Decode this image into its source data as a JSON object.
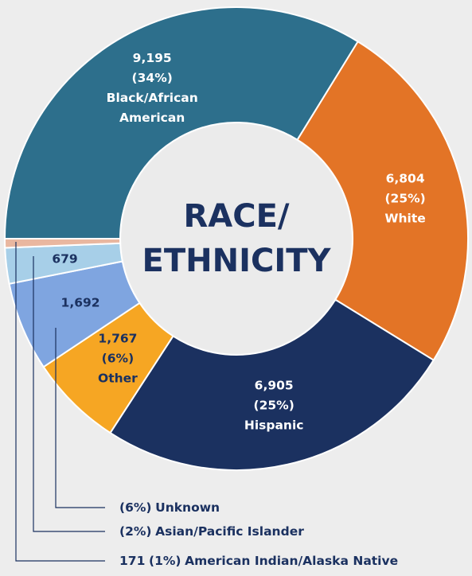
{
  "chart_data": {
    "type": "donut",
    "title_lines": [
      "RACE/",
      "ETHNICITY"
    ],
    "categories": [
      "Black/African American",
      "White",
      "Hispanic",
      "Other",
      "Unknown",
      "Asian/Pacific Islander",
      "American Indian/Alaska Native"
    ],
    "values": [
      9195,
      6804,
      6905,
      1767,
      1692,
      679,
      171
    ],
    "value_labels": [
      "9,195",
      "6,804",
      "6,905",
      "1,767",
      "1,692",
      "679",
      "171"
    ],
    "percents": [
      34,
      25,
      25,
      6,
      6,
      2,
      1
    ],
    "percent_labels": [
      "(34%)",
      "(25%)",
      "(25%)",
      "(6%)",
      "(6%)",
      "(2%)",
      "(1%)"
    ],
    "colors": [
      "#2d6f8c",
      "#e37426",
      "#1b3160",
      "#f6a623",
      "#7fa5e0",
      "#a7cfe8",
      "#e9b7a0"
    ]
  }
}
